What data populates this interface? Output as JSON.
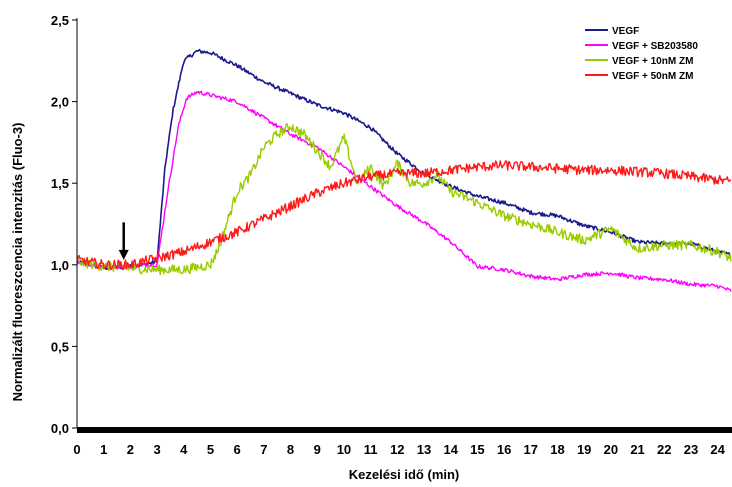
{
  "chart_data": {
    "type": "line",
    "title": "",
    "xlabel": "Kezelési idő (min)",
    "ylabel": "Normalizált fluoreszcencia intenzitás (Fluo-3)",
    "xlim": [
      0,
      24.5
    ],
    "ylim": [
      0,
      2.5
    ],
    "x_ticks": [
      "0",
      "1",
      "2",
      "3",
      "4",
      "5",
      "6",
      "7",
      "8",
      "9",
      "10",
      "11",
      "12",
      "13",
      "14",
      "15",
      "16",
      "17",
      "18",
      "19",
      "20",
      "21",
      "22",
      "23",
      "24"
    ],
    "y_ticks": [
      "0,0",
      "0,5",
      "1,0",
      "1,5",
      "2,0",
      "2,5"
    ],
    "grid": false,
    "legend_position": "top-right",
    "annotation": {
      "type": "arrow",
      "x": 1.75,
      "y_top": 1.26,
      "y_tip": 1.03,
      "meaning": "treatment start"
    },
    "series": [
      {
        "name": "VEGF",
        "color": "#1a1a8c",
        "noise": 0.012,
        "x": [
          0,
          1,
          2,
          2.5,
          3,
          3.3,
          3.6,
          4,
          4.5,
          5,
          6,
          7,
          8,
          9,
          10,
          11,
          12,
          13,
          14,
          15,
          16,
          17,
          18,
          19,
          20,
          21,
          22,
          23,
          24,
          24.5
        ],
        "y": [
          1.02,
          0.98,
          0.99,
          1.0,
          1.02,
          1.6,
          1.95,
          2.25,
          2.31,
          2.3,
          2.22,
          2.12,
          2.05,
          1.98,
          1.93,
          1.84,
          1.68,
          1.56,
          1.48,
          1.42,
          1.38,
          1.32,
          1.3,
          1.24,
          1.2,
          1.14,
          1.13,
          1.13,
          1.08,
          1.06
        ]
      },
      {
        "name": "VEGF + SB203580",
        "color": "#ff00ff",
        "noise": 0.012,
        "x": [
          0,
          1,
          2,
          2.5,
          3,
          3.4,
          3.8,
          4.1,
          4.5,
          5,
          6,
          7,
          8,
          9,
          10,
          11,
          12,
          13,
          14,
          15,
          16,
          17,
          18,
          19,
          20,
          21,
          22,
          23,
          24,
          24.5
        ],
        "y": [
          1.02,
          0.99,
          0.99,
          1.0,
          1.0,
          1.45,
          1.85,
          2.02,
          2.06,
          2.04,
          2.0,
          1.9,
          1.8,
          1.72,
          1.6,
          1.48,
          1.36,
          1.26,
          1.14,
          0.99,
          0.97,
          0.93,
          0.91,
          0.94,
          0.95,
          0.92,
          0.91,
          0.88,
          0.87,
          0.84
        ]
      },
      {
        "name": "VEGF + 10nM ZM",
        "color": "#99cc00",
        "noise": 0.03,
        "x": [
          0,
          1,
          2,
          3,
          4,
          5,
          5.3,
          5.7,
          6,
          6.5,
          7,
          7.5,
          8,
          8.5,
          9,
          9.5,
          10,
          10.5,
          11,
          11.5,
          12,
          12.5,
          13,
          13.5,
          14,
          15,
          16,
          17,
          18,
          19,
          20,
          21,
          22,
          23,
          24,
          24.5
        ],
        "y": [
          1.02,
          0.99,
          0.98,
          0.97,
          0.97,
          1.0,
          1.1,
          1.3,
          1.45,
          1.55,
          1.72,
          1.8,
          1.85,
          1.8,
          1.7,
          1.6,
          1.78,
          1.5,
          1.6,
          1.48,
          1.62,
          1.5,
          1.5,
          1.55,
          1.45,
          1.38,
          1.3,
          1.25,
          1.2,
          1.15,
          1.22,
          1.1,
          1.12,
          1.12,
          1.08,
          1.04
        ]
      },
      {
        "name": "VEGF + 50nM ZM",
        "color": "#ff1a1a",
        "noise": 0.03,
        "x": [
          0,
          1,
          2,
          3,
          4,
          5,
          6,
          7,
          8,
          9,
          10,
          11,
          12,
          13,
          14,
          15,
          16,
          17,
          18,
          19,
          20,
          21,
          22,
          23,
          24,
          24.5
        ],
        "y": [
          1.03,
          1.0,
          1.0,
          1.04,
          1.08,
          1.14,
          1.2,
          1.28,
          1.36,
          1.44,
          1.5,
          1.54,
          1.56,
          1.56,
          1.58,
          1.6,
          1.61,
          1.6,
          1.59,
          1.58,
          1.58,
          1.57,
          1.56,
          1.54,
          1.52,
          1.51
        ]
      }
    ]
  }
}
